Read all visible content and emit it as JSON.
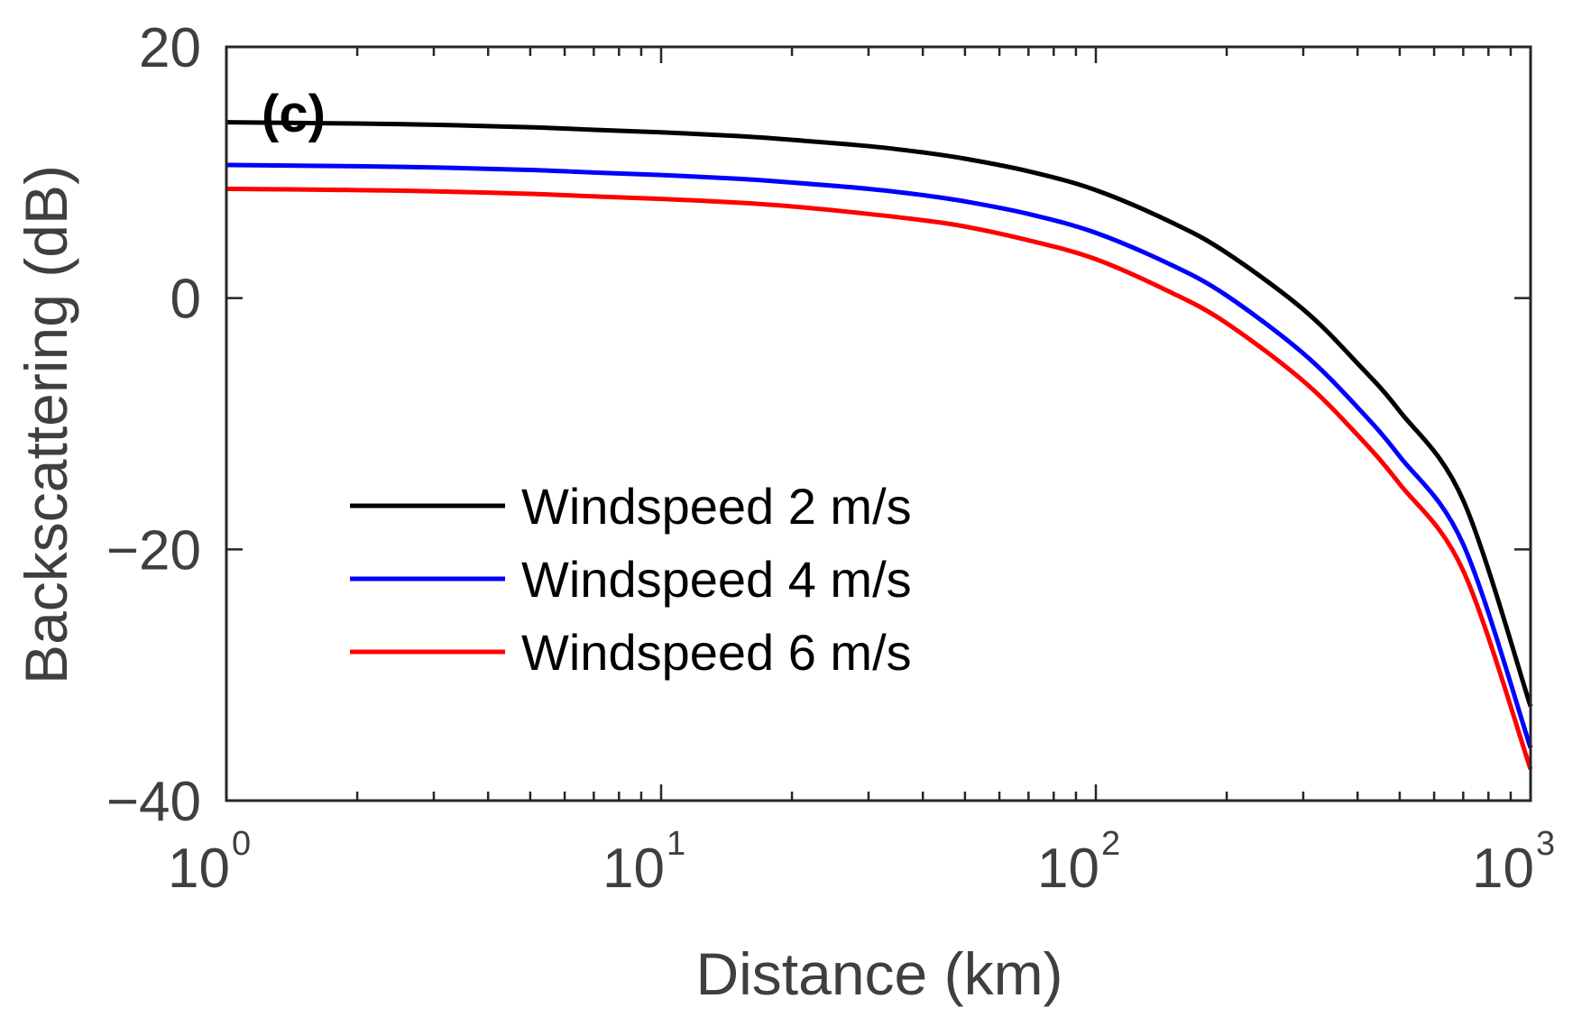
{
  "chart_data": {
    "type": "line",
    "title": "",
    "panel_label": "(c)",
    "xlabel": "Distance (km)",
    "ylabel": "Backscattering (dB)",
    "xscale": "log",
    "xlim": [
      1,
      1000
    ],
    "ylim": [
      -40,
      20
    ],
    "x_ticks": [
      {
        "value": 1,
        "base": "10",
        "exp": "0"
      },
      {
        "value": 10,
        "base": "10",
        "exp": "1"
      },
      {
        "value": 100,
        "base": "10",
        "exp": "2"
      },
      {
        "value": 1000,
        "base": "10",
        "exp": "3"
      }
    ],
    "y_ticks": [
      {
        "value": 20,
        "label": "20"
      },
      {
        "value": 0,
        "label": "0"
      },
      {
        "value": -20,
        "label": "−20"
      },
      {
        "value": -40,
        "label": "−40"
      }
    ],
    "grid": false,
    "legend_position": "lower-left",
    "x": [
      1,
      2,
      3,
      5,
      7,
      10,
      15,
      20,
      30,
      40,
      50,
      70,
      100,
      150,
      200,
      300,
      400,
      500,
      700,
      1000
    ],
    "series": [
      {
        "name": "Windspeed 2 m/s",
        "color": "#000000",
        "values": [
          14.0,
          13.9,
          13.8,
          13.6,
          13.4,
          13.2,
          12.9,
          12.6,
          12.1,
          11.6,
          11.1,
          10.1,
          8.6,
          6.0,
          3.6,
          -0.9,
          -5.2,
          -9.0,
          -16.1,
          -32.5
        ]
      },
      {
        "name": "Windspeed 4 m/s",
        "color": "#0000ff",
        "values": [
          10.6,
          10.5,
          10.4,
          10.2,
          10.0,
          9.8,
          9.5,
          9.2,
          8.7,
          8.2,
          7.7,
          6.7,
          5.2,
          2.6,
          0.2,
          -4.4,
          -8.7,
          -12.6,
          -19.6,
          -35.8
        ]
      },
      {
        "name": "Windspeed 6 m/s",
        "color": "#ff0000",
        "values": [
          8.7,
          8.6,
          8.5,
          8.3,
          8.1,
          7.9,
          7.6,
          7.3,
          6.7,
          6.2,
          5.7,
          4.6,
          3.1,
          0.4,
          -2.0,
          -6.6,
          -10.9,
          -14.8,
          -21.7,
          -37.5
        ]
      }
    ]
  }
}
